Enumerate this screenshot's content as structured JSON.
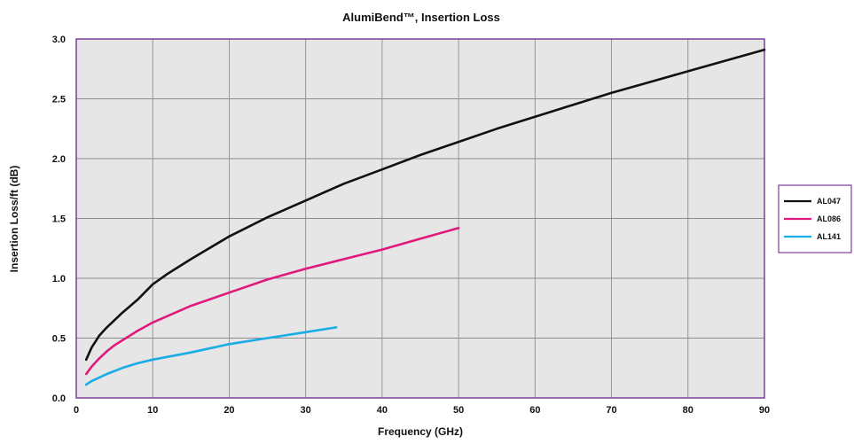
{
  "chart_data": {
    "type": "line",
    "title": "AlumiBend™, Insertion Loss",
    "xlabel": "Frequency (GHz)",
    "ylabel": "Insertion Loss/ft (dB)",
    "xlim": [
      0,
      90
    ],
    "ylim": [
      0,
      3.0
    ],
    "xticks": [
      "0",
      "10",
      "20",
      "30",
      "40",
      "50",
      "60",
      "70",
      "80",
      "90"
    ],
    "yticks": [
      "0.0",
      "0.5",
      "1.0",
      "1.5",
      "2.0",
      "2.5",
      "3.0"
    ],
    "grid": true,
    "legend_position": "right",
    "plot_background": "#e6e6e6",
    "frame_color": "#7b3f98",
    "series": [
      {
        "name": "AL047",
        "color": "#111111",
        "x": [
          1.3,
          2,
          3,
          4,
          5,
          6,
          8,
          10,
          12,
          15,
          20,
          25,
          30,
          35,
          40,
          45,
          50,
          55,
          60,
          65,
          70,
          75,
          80,
          85,
          90
        ],
        "y": [
          0.32,
          0.42,
          0.52,
          0.59,
          0.65,
          0.71,
          0.82,
          0.95,
          1.04,
          1.16,
          1.35,
          1.51,
          1.65,
          1.79,
          1.91,
          2.03,
          2.14,
          2.25,
          2.35,
          2.45,
          2.55,
          2.64,
          2.73,
          2.82,
          2.91
        ]
      },
      {
        "name": "AL086",
        "color": "#e0197d",
        "x": [
          1.3,
          2,
          3,
          4,
          5,
          6,
          8,
          10,
          15,
          20,
          25,
          30,
          35,
          40,
          45,
          50
        ],
        "y": [
          0.2,
          0.26,
          0.33,
          0.39,
          0.44,
          0.48,
          0.56,
          0.63,
          0.77,
          0.88,
          0.99,
          1.08,
          1.16,
          1.24,
          1.33,
          1.42
        ]
      },
      {
        "name": "AL141",
        "color": "#1aace4",
        "x": [
          1.3,
          2,
          3,
          4,
          6,
          8,
          10,
          15,
          20,
          25,
          30,
          34
        ],
        "y": [
          0.11,
          0.14,
          0.17,
          0.2,
          0.25,
          0.29,
          0.32,
          0.38,
          0.45,
          0.5,
          0.55,
          0.59
        ]
      }
    ]
  }
}
